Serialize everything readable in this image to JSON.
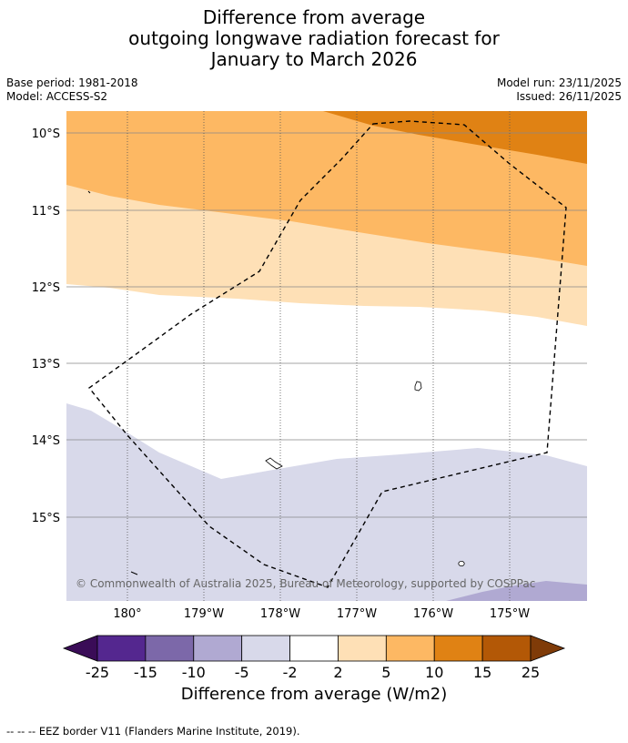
{
  "title": {
    "line1": "Difference from average",
    "line2": "outgoing longwave radiation forecast for",
    "line3": "January to March 2026"
  },
  "meta": {
    "base_period": "Base period: 1981-2018",
    "model": "Model: ACCESS-S2",
    "model_run": "Model run: 23/11/2025",
    "issued": "Issued: 26/11/2025"
  },
  "map": {
    "lat_labels": [
      "10°S",
      "11°S",
      "12°S",
      "13°S",
      "14°S",
      "15°S"
    ],
    "lon_labels": [
      "180°",
      "179°W",
      "178°W",
      "177°W",
      "176°W",
      "175°W"
    ],
    "copyright": "© Commonwealth of Australia 2025, Bureau of Meteorology, supported by COSPPac"
  },
  "colorbar": {
    "ticks": [
      "-25",
      "-15",
      "-10",
      "-5",
      "-2",
      "2",
      "5",
      "10",
      "15",
      "25"
    ],
    "colors": [
      "#54278f",
      "#7c68a9",
      "#b0a9d2",
      "#d8d9ea",
      "#ffffff",
      "#fee0b6",
      "#fdb863",
      "#e08214",
      "#b35806"
    ],
    "low_extend_color": "#3a0c57",
    "high_extend_color": "#7f3b08",
    "label": "Difference from average (W/m2)"
  },
  "legend": {
    "eez_note": "--  --  -- EEZ border V11 (Flanders Marine Institute, 2019)."
  }
}
